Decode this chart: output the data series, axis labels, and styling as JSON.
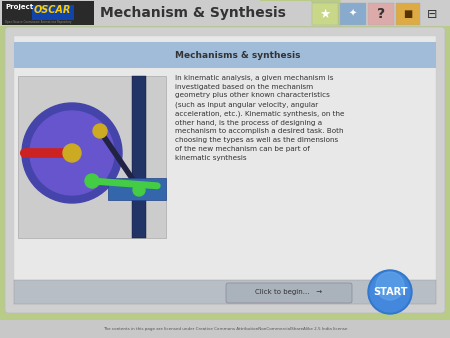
{
  "title": "Mechanism & Synthesis",
  "subtitle": "Mechanisms & synthesis",
  "body_text": "In kinematic analysis, a given mechanism is\ninvestigated based on the mechanism\ngeometry plus other known characteristics\n(such as input angular velocity, angular\nacceleration, etc.). Kinematic synthesis, on the\nother hand, is the process of designing a\nmechanism to accomplish a desired task. Both\nchoosing the types as well as the dimensions\nof the new mechanism can be part of\nkinematic synthesis",
  "footer_text": "The contents in this page are licensed under Creative Commons AttributionNonCommercialShareAlike 2.5 India license",
  "click_text": "Click to begin...   →",
  "start_text": "START",
  "bg_color": "#b8cc88",
  "header_bg": "#d8d8d8",
  "blue_bar_color": "#a0bcd8",
  "footer_text_color": "#555555",
  "start_btn_color": "#4488cc",
  "logo_green": "#88cc00",
  "logo_blue": "#1144aa",
  "logo_orange": "#cc6600",
  "icon_star_color": "#c8d888",
  "icon_cursor_color": "#88aacc",
  "icon_q_color": "#ddaaaa",
  "icon_bag_color": "#ddaa44",
  "icon_print_color": "#888888"
}
